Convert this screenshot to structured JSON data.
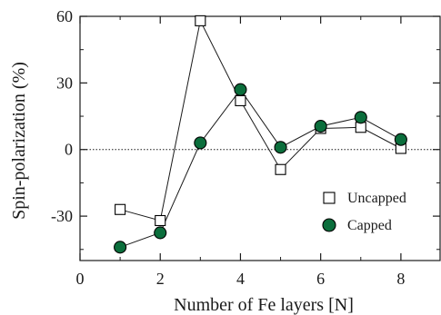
{
  "chart_data": {
    "type": "line",
    "xlabel": "Number of Fe layers  [N]",
    "ylabel": "Spin-polarization (%)",
    "xlim": [
      0,
      9
    ],
    "ylim": [
      -50,
      60
    ],
    "xticks": [
      0,
      2,
      4,
      6,
      8
    ],
    "yticks": [
      -30,
      0,
      30,
      60
    ],
    "x_minor_ticks": [
      1,
      3,
      5,
      7
    ],
    "y_minor_ticks": [
      -45,
      -15,
      15,
      45
    ],
    "reference_line": {
      "y": 0,
      "style": "dotted"
    },
    "grid": false,
    "legend_position": "right",
    "x": [
      1,
      2,
      3,
      4,
      5,
      6,
      7,
      8
    ],
    "series": [
      {
        "name": "Uncapped",
        "marker": "open-square",
        "color": "#000000",
        "values": [
          -27,
          -32,
          58,
          22,
          -9,
          9.5,
          10,
          0.5
        ]
      },
      {
        "name": "Capped",
        "marker": "filled-circle",
        "color": "#0b6e3c",
        "values": [
          -44,
          -37.5,
          3,
          27,
          1,
          10.5,
          14.5,
          4.5
        ]
      }
    ]
  }
}
